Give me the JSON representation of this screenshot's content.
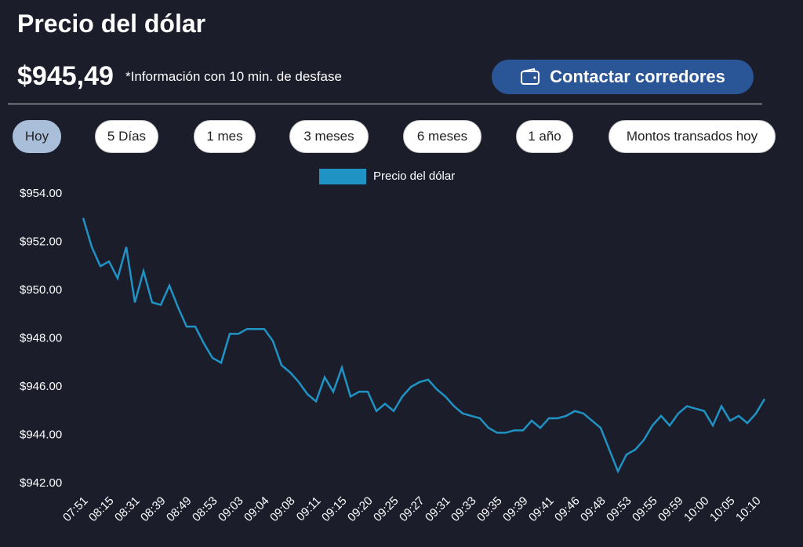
{
  "header": {
    "title": "Precio del dólar",
    "price": "$945,49",
    "note": "*Información con 10 min. de desfase",
    "button": "Contactar corredores"
  },
  "tabs": [
    "Hoy",
    "5 Días",
    "1 mes",
    "3 meses",
    "6 meses",
    "1 año",
    "Montos transados hoy"
  ],
  "chart_data": {
    "type": "line",
    "categories": [
      "07:51",
      null,
      null,
      "08:15",
      null,
      null,
      "08:31",
      null,
      null,
      "08:39",
      null,
      null,
      "08:49",
      null,
      null,
      "08:53",
      null,
      null,
      "09:03",
      null,
      null,
      "09:04",
      null,
      null,
      "09:08",
      null,
      null,
      "09:11",
      null,
      null,
      "09:15",
      null,
      null,
      "09:20",
      null,
      null,
      "09:25",
      null,
      null,
      "09:27",
      null,
      null,
      "09:31",
      null,
      null,
      "09:33",
      null,
      null,
      "09:35",
      null,
      null,
      "09:39",
      null,
      null,
      "09:41",
      null,
      null,
      "09:46",
      null,
      null,
      "09:48",
      null,
      null,
      "09:53",
      null,
      null,
      "09:55",
      null,
      null,
      "09:59",
      null,
      null,
      "10:00",
      null,
      null,
      "10:05",
      null,
      null,
      "10:10",
      null
    ],
    "series": [
      {
        "name": "Precio del dólar",
        "color": "#1f93c4",
        "values": [
          953.0,
          951.8,
          951.0,
          951.2,
          950.5,
          951.8,
          949.5,
          950.8,
          949.5,
          949.4,
          950.2,
          949.3,
          948.5,
          948.5,
          947.8,
          947.2,
          947.0,
          948.2,
          948.2,
          948.4,
          948.4,
          948.4,
          947.9,
          946.9,
          946.6,
          946.2,
          945.7,
          945.4,
          946.4,
          945.8,
          946.8,
          945.6,
          945.8,
          945.8,
          945.0,
          945.3,
          945.0,
          945.6,
          946.0,
          946.2,
          946.3,
          945.9,
          945.6,
          945.2,
          944.9,
          944.8,
          944.7,
          944.3,
          944.1,
          944.1,
          944.2,
          944.2,
          944.6,
          944.3,
          944.7,
          944.7,
          944.8,
          945.0,
          944.9,
          944.6,
          944.3,
          943.4,
          942.5,
          943.2,
          943.4,
          943.8,
          944.4,
          944.8,
          944.4,
          944.9,
          945.2,
          945.1,
          945.0,
          944.4,
          945.2,
          944.6,
          944.8,
          944.5,
          944.9,
          945.5
        ]
      }
    ],
    "ylim": [
      942,
      954
    ],
    "yticks": [
      {
        "value": 942,
        "label": "$942.00"
      },
      {
        "value": 944,
        "label": "$944.00"
      },
      {
        "value": 946,
        "label": "$946.00"
      },
      {
        "value": 948,
        "label": "$948.00"
      },
      {
        "value": 950,
        "label": "$950.00"
      },
      {
        "value": 952,
        "label": "$952.00"
      },
      {
        "value": 954,
        "label": "$954.00"
      }
    ],
    "legend": "top"
  }
}
